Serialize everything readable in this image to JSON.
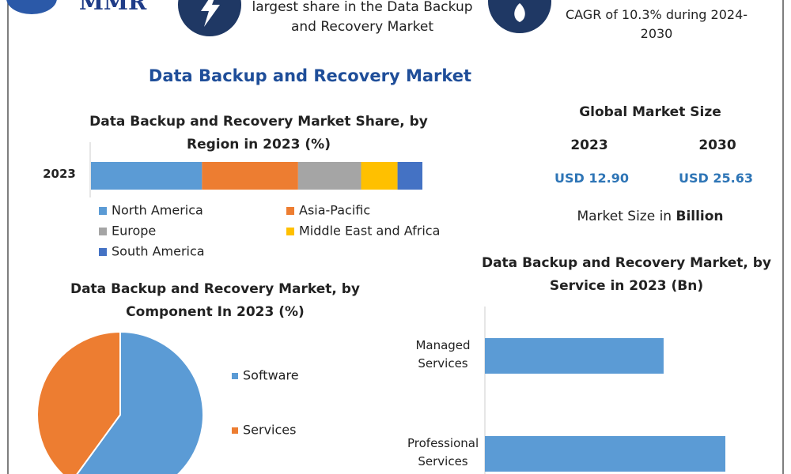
{
  "header": {
    "logo": "MMR",
    "items": [
      {
        "text": "largest share in the Data Backup and Recovery Market"
      },
      {
        "text": "CAGR of 10.3% during 2024-2030"
      }
    ]
  },
  "title": "Data Backup and Recovery Market",
  "market_size": {
    "title": "Global Market Size",
    "years": [
      "2023",
      "2030"
    ],
    "values": [
      "USD 12.90",
      "USD 25.63"
    ],
    "note": "Market Size in",
    "note_bold": "Billion"
  },
  "chart_data": [
    {
      "type": "stacked_bar",
      "title": "Data Backup and Recovery Market Share, by Region in 2023 (%)",
      "categories": [
        "2023"
      ],
      "xlim": [
        0,
        100
      ],
      "series": [
        {
          "name": "North America",
          "color": "#5b9bd5",
          "values": [
            33.5
          ]
        },
        {
          "name": "Asia-Pacific",
          "color": "#ed7d31",
          "values": [
            29
          ]
        },
        {
          "name": "Europe",
          "color": "#a5a5a5",
          "values": [
            19
          ]
        },
        {
          "name": "Middle East and Africa",
          "color": "#ffc000",
          "values": [
            11
          ]
        },
        {
          "name": "South America",
          "color": "#4472c4",
          "values": [
            7.5
          ]
        }
      ]
    },
    {
      "type": "pie",
      "title": "Data Backup and Recovery Market, by Component In 2023 (%)",
      "categories": [
        "Software",
        "Services"
      ],
      "values": [
        60,
        40
      ],
      "colors": [
        "#5b9bd5",
        "#ed7d31"
      ]
    },
    {
      "type": "bar",
      "title": "Data Backup and Recovery Market, by Service in 2023 (Bn)",
      "categories": [
        "Managed Services",
        "Professional Services"
      ],
      "values": [
        5.5,
        7.4
      ],
      "color": "#5b9bd5",
      "xlim": [
        0,
        8
      ]
    }
  ]
}
